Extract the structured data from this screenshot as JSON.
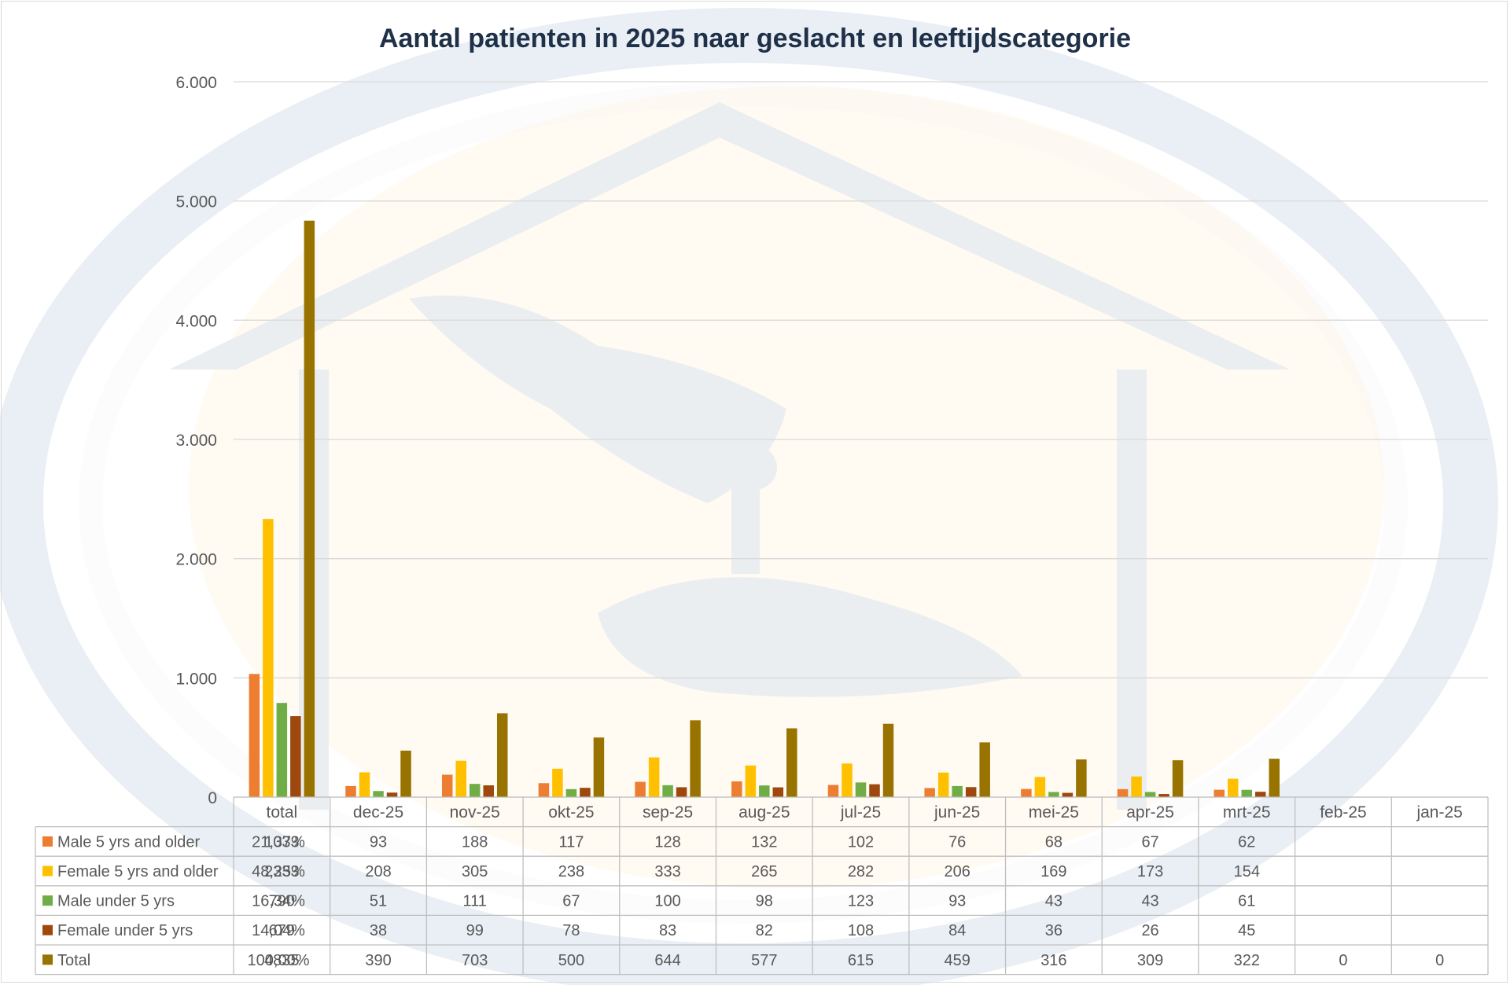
{
  "chart_data": {
    "type": "bar",
    "title": "Aantal patienten in 2025 naar geslacht en leeftijdscategorie",
    "xlabel": "",
    "ylabel": "",
    "ylim": [
      0,
      6000
    ],
    "yticks": [
      "0",
      "1.000",
      "2.000",
      "3.000",
      "4.000",
      "5.000",
      "6.000"
    ],
    "grid": true,
    "legend": "data-table",
    "categories": [
      "total",
      "dec-25",
      "nov-25",
      "okt-25",
      "sep-25",
      "aug-25",
      "jul-25",
      "jun-25",
      "mei-25",
      "apr-25",
      "mrt-25",
      "feb-25",
      "jan-25"
    ],
    "series": [
      {
        "name": "Male 5 yrs and older",
        "share": "21,37%",
        "color": "#ED7D31",
        "values": [
          1033,
          93,
          188,
          117,
          128,
          132,
          102,
          76,
          68,
          67,
          62,
          null,
          null
        ]
      },
      {
        "name": "Female 5 yrs and older",
        "share": "48,25%",
        "color": "#FFC000",
        "values": [
          2333,
          208,
          305,
          238,
          333,
          265,
          282,
          206,
          169,
          173,
          154,
          null,
          null
        ]
      },
      {
        "name": "Male under 5 yrs",
        "share": "16,34%",
        "color": "#70AD47",
        "values": [
          790,
          51,
          111,
          67,
          100,
          98,
          123,
          93,
          43,
          43,
          61,
          null,
          null
        ]
      },
      {
        "name": "Female under 5 yrs",
        "share": "14,04%",
        "color": "#9E480E",
        "values": [
          679,
          38,
          99,
          78,
          83,
          82,
          108,
          84,
          36,
          26,
          45,
          null,
          null
        ]
      },
      {
        "name": "Total",
        "share": "100,00%",
        "color": "#997300",
        "values": [
          4835,
          390,
          703,
          500,
          644,
          577,
          615,
          459,
          316,
          309,
          322,
          0,
          0
        ]
      }
    ]
  }
}
